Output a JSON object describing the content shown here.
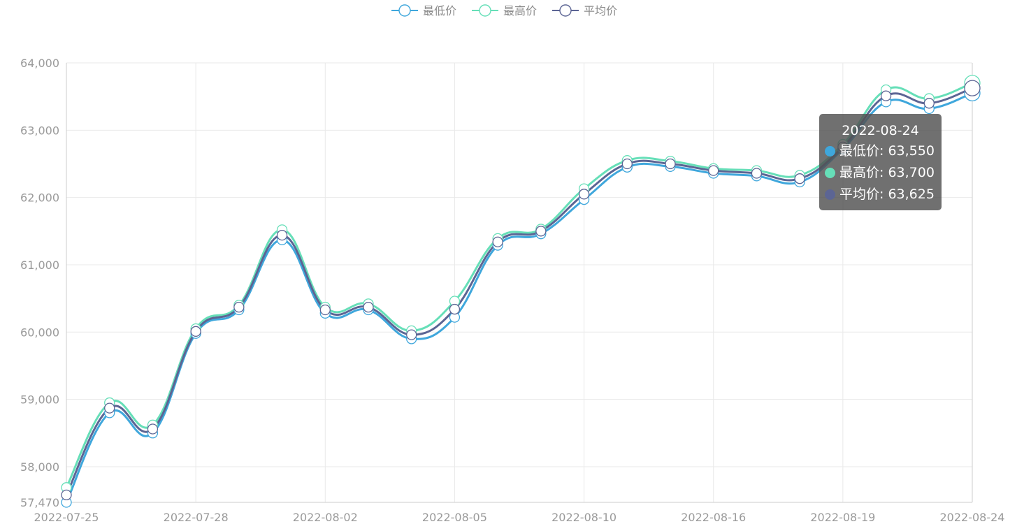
{
  "legend": [
    {
      "label": "最低价",
      "color": "#3fa7dc"
    },
    {
      "label": "最高价",
      "color": "#66dfb8"
    },
    {
      "label": "平均价",
      "color": "#5c6594"
    }
  ],
  "tooltip": {
    "title": "2022-08-24",
    "rows": [
      {
        "label": "最低价",
        "value": "63,550",
        "color": "#3fa7dc"
      },
      {
        "label": "最高价",
        "value": "63,700",
        "color": "#66dfb8"
      },
      {
        "label": "平均价",
        "value": "63,625",
        "color": "#5c6594"
      }
    ]
  },
  "chart_data": {
    "type": "line",
    "smooth": true,
    "grid": true,
    "legend_position": "top-center",
    "ylim": [
      57470,
      64000
    ],
    "yticks": [
      57470,
      58000,
      59000,
      60000,
      61000,
      62000,
      63000,
      64000
    ],
    "ytick_labels": [
      "57,470",
      "58,000",
      "59,000",
      "60,000",
      "61,000",
      "62,000",
      "63,000",
      "64,000"
    ],
    "xticks": [
      {
        "label": "2022-07-25",
        "index": 0
      },
      {
        "label": "2022-07-28",
        "index": 3
      },
      {
        "label": "2022-08-02",
        "index": 6
      },
      {
        "label": "2022-08-05",
        "index": 9
      },
      {
        "label": "2022-08-10",
        "index": 12
      },
      {
        "label": "2022-08-16",
        "index": 15
      },
      {
        "label": "2022-08-19",
        "index": 18
      },
      {
        "label": "2022-08-24",
        "index": 21
      }
    ],
    "series": [
      {
        "name": "最低价",
        "color": "#3fa7dc",
        "values": [
          57470,
          58800,
          58500,
          59980,
          60330,
          61370,
          60280,
          60330,
          59900,
          60220,
          61290,
          61460,
          61970,
          62450,
          62460,
          62360,
          62320,
          62230,
          62720,
          63420,
          63320,
          63550
        ]
      },
      {
        "name": "最高价",
        "color": "#66dfb8",
        "values": [
          57690,
          58950,
          58620,
          60050,
          60400,
          61520,
          60370,
          60420,
          60020,
          60460,
          61390,
          61530,
          62130,
          62550,
          62540,
          62430,
          62400,
          62330,
          62790,
          63600,
          63470,
          63700
        ]
      },
      {
        "name": "平均价",
        "color": "#5c6594",
        "values": [
          57580,
          58870,
          58560,
          60010,
          60370,
          61440,
          60330,
          60370,
          59960,
          60340,
          61340,
          61500,
          62050,
          62500,
          62500,
          62400,
          62360,
          62280,
          62750,
          63510,
          63400,
          63625
        ]
      }
    ]
  }
}
